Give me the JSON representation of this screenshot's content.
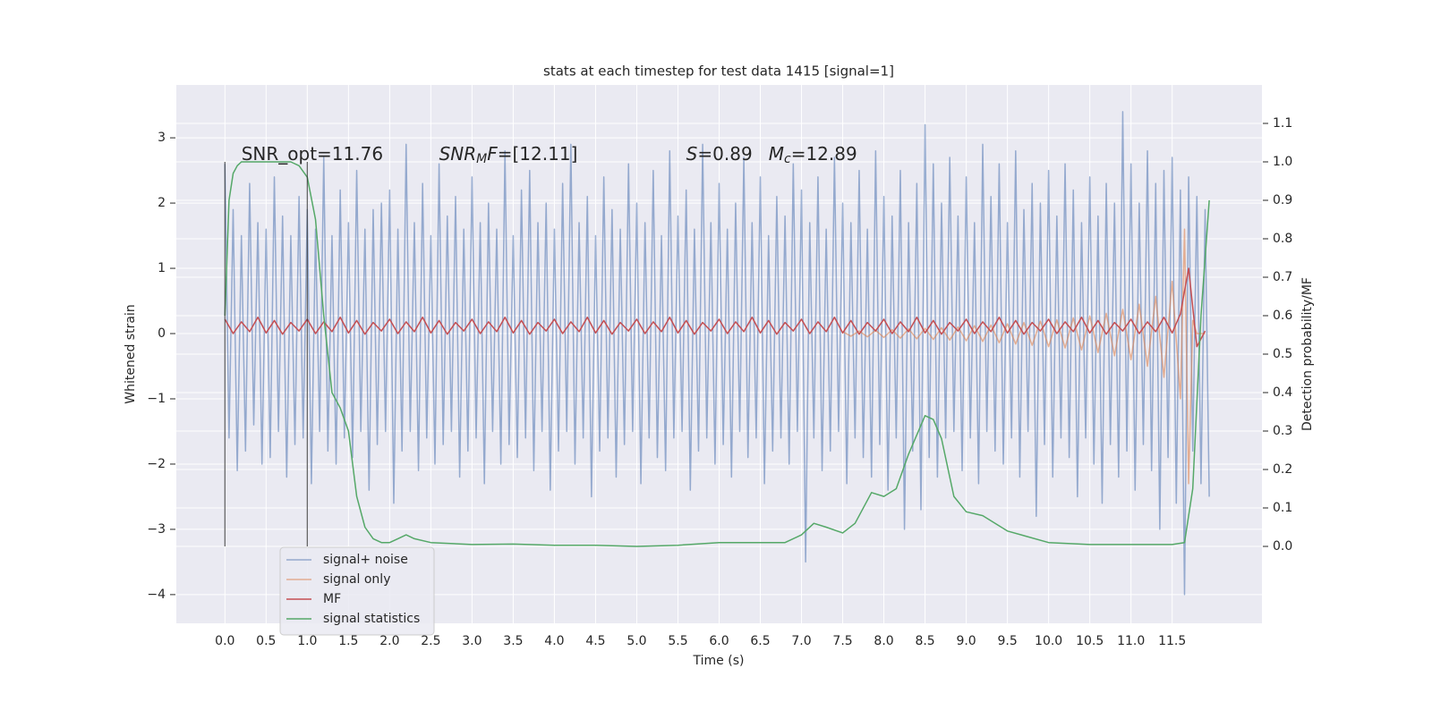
{
  "chart_data": {
    "type": "line",
    "title": "stats at each timestep for test data 1415 [signal=1]",
    "xlabel": "Time (s)",
    "ylabel": "Whitened strain",
    "y2label": "Detection probability/MF",
    "xlim": [
      -0.59,
      12.59
    ],
    "ylim": [
      -4.44,
      3.81
    ],
    "y2lim": [
      -0.2,
      1.2
    ],
    "xticks": [
      {
        "value": 0,
        "label": "0.0"
      },
      0.5,
      {
        "value": 1,
        "label": "1.0"
      },
      1.5,
      {
        "value": 2,
        "label": "2.0"
      },
      2.5,
      {
        "value": 3,
        "label": "3.0"
      },
      3.5,
      {
        "value": 4,
        "label": "4.0"
      },
      4.5,
      {
        "value": 5,
        "label": "5.0"
      },
      5.5,
      {
        "value": 6,
        "label": "6.0"
      },
      6.5,
      {
        "value": 7,
        "label": "7.0"
      },
      7.5,
      {
        "value": 8,
        "label": "8.0"
      },
      8.5,
      {
        "value": 9,
        "label": "9.0"
      },
      9.5,
      {
        "value": 10,
        "label": "10.0"
      },
      10.5,
      {
        "value": 11,
        "label": "11.0"
      },
      11.5
    ],
    "yticks": [
      {
        "value": -4,
        "label": "−4"
      },
      {
        "value": -3,
        "label": "−3"
      },
      {
        "value": -2,
        "label": "−2"
      },
      {
        "value": -1,
        "label": "−1"
      },
      0,
      1,
      2,
      3
    ],
    "y2ticks": [
      {
        "value": 0,
        "label": "0.0"
      },
      0.1,
      0.2,
      0.3,
      0.4,
      0.5,
      0.6,
      0.7,
      0.8,
      0.9,
      {
        "value": 1,
        "label": "1.0"
      },
      1.1
    ],
    "grid": true,
    "legend": "lower left",
    "annotations": [
      {
        "parts": [
          {
            "text": "SNR_opt=11.76"
          }
        ]
      },
      {
        "parts": [
          {
            "text": "SNR",
            "italic": true
          },
          {
            "text": "M",
            "italic": true,
            "sub": true
          },
          {
            "text": "F",
            "italic": true
          },
          {
            "text": "=[12.11]"
          }
        ]
      },
      {
        "parts": [
          {
            "text": "S",
            "italic": true
          },
          {
            "text": "=0.89"
          }
        ]
      },
      {
        "parts": [
          {
            "text": "M",
            "italic": true
          },
          {
            "text": "c",
            "italic": true,
            "sub": true
          },
          {
            "text": "=12.89"
          }
        ]
      }
    ],
    "vlines": [
      {
        "x": 0,
        "y2min": 0,
        "y2max": 1
      },
      {
        "x": 1,
        "y2min": 0,
        "y2max": 1
      }
    ],
    "vline_color": "#333333",
    "series": [
      {
        "name": "signal+ noise",
        "color": "#4c72b0",
        "axis": "y",
        "x": [
          0,
          0.05,
          0.1,
          0.15,
          0.2,
          0.25,
          0.3,
          0.35,
          0.4,
          0.45,
          0.5,
          0.55,
          0.6,
          0.65,
          0.7,
          0.75,
          0.8,
          0.85,
          0.9,
          0.95,
          1,
          1.05,
          1.1,
          1.15,
          1.2,
          1.25,
          1.3,
          1.35,
          1.4,
          1.45,
          1.5,
          1.55,
          1.6,
          1.65,
          1.7,
          1.75,
          1.8,
          1.85,
          1.9,
          1.95,
          2,
          2.05,
          2.1,
          2.15,
          2.2,
          2.25,
          2.3,
          2.35,
          2.4,
          2.45,
          2.5,
          2.55,
          2.6,
          2.65,
          2.7,
          2.75,
          2.8,
          2.85,
          2.9,
          2.95,
          3,
          3.05,
          3.1,
          3.15,
          3.2,
          3.25,
          3.3,
          3.35,
          3.4,
          3.45,
          3.5,
          3.55,
          3.6,
          3.65,
          3.7,
          3.75,
          3.8,
          3.85,
          3.9,
          3.95,
          4,
          4.05,
          4.1,
          4.15,
          4.2,
          4.25,
          4.3,
          4.35,
          4.4,
          4.45,
          4.5,
          4.55,
          4.6,
          4.65,
          4.7,
          4.75,
          4.8,
          4.85,
          4.9,
          4.95,
          5,
          5.05,
          5.1,
          5.15,
          5.2,
          5.25,
          5.3,
          5.35,
          5.4,
          5.45,
          5.5,
          5.55,
          5.6,
          5.65,
          5.7,
          5.75,
          5.8,
          5.85,
          5.9,
          5.95,
          6,
          6.05,
          6.1,
          6.15,
          6.2,
          6.25,
          6.3,
          6.35,
          6.4,
          6.45,
          6.5,
          6.55,
          6.6,
          6.65,
          6.7,
          6.75,
          6.8,
          6.85,
          6.9,
          6.95,
          7,
          7.05,
          7.1,
          7.15,
          7.2,
          7.25,
          7.3,
          7.35,
          7.4,
          7.45,
          7.5,
          7.55,
          7.6,
          7.65,
          7.7,
          7.75,
          7.8,
          7.85,
          7.9,
          7.95,
          8,
          8.05,
          8.1,
          8.15,
          8.2,
          8.25,
          8.3,
          8.35,
          8.4,
          8.45,
          8.5,
          8.55,
          8.6,
          8.65,
          8.7,
          8.75,
          8.8,
          8.85,
          8.9,
          8.95,
          9,
          9.05,
          9.1,
          9.15,
          9.2,
          9.25,
          9.3,
          9.35,
          9.4,
          9.45,
          9.5,
          9.55,
          9.6,
          9.65,
          9.7,
          9.75,
          9.8,
          9.85,
          9.9,
          9.95,
          10,
          10.05,
          10.1,
          10.15,
          10.2,
          10.25,
          10.3,
          10.35,
          10.4,
          10.45,
          10.5,
          10.55,
          10.6,
          10.65,
          10.7,
          10.75,
          10.8,
          10.85,
          10.9,
          10.95,
          11,
          11.05,
          11.1,
          11.15,
          11.2,
          11.25,
          11.3,
          11.35,
          11.4,
          11.45,
          11.5,
          11.55,
          11.6,
          11.65,
          11.7,
          11.75,
          11.8,
          11.85,
          11.9,
          11.95
        ],
        "values": [
          2.6,
          -1.6,
          1.9,
          -2.1,
          1.5,
          -1.8,
          2.3,
          -1.4,
          1.7,
          -2.0,
          1.6,
          -1.9,
          2.4,
          -1.5,
          1.8,
          -2.2,
          1.5,
          -1.7,
          2.1,
          -1.6,
          1.9,
          -2.3,
          1.6,
          -1.5,
          2.7,
          -1.8,
          1.5,
          -2.0,
          2.2,
          -1.6,
          1.7,
          -1.9,
          2.5,
          -1.5,
          1.6,
          -2.4,
          1.9,
          -1.7,
          2.0,
          -1.5,
          2.2,
          -2.6,
          1.6,
          -1.8,
          2.9,
          -1.5,
          1.7,
          -2.1,
          2.3,
          -1.6,
          1.5,
          -2.0,
          2.6,
          -1.7,
          1.8,
          -1.5,
          2.1,
          -2.2,
          1.6,
          -1.8,
          2.4,
          -1.6,
          1.7,
          -2.3,
          2.0,
          -1.5,
          1.6,
          -2.0,
          2.8,
          -1.7,
          1.5,
          -1.9,
          2.2,
          -1.6,
          2.5,
          -2.1,
          1.7,
          -1.5,
          2.0,
          -2.4,
          1.6,
          -1.8,
          2.3,
          -1.5,
          2.9,
          -2.0,
          1.7,
          -1.6,
          2.1,
          -2.5,
          1.5,
          -1.8,
          2.4,
          -1.6,
          1.9,
          -2.2,
          1.6,
          -1.7,
          2.6,
          -1.5,
          2.0,
          -2.3,
          1.7,
          -1.6,
          2.5,
          -1.9,
          1.5,
          -2.1,
          2.8,
          -1.6,
          1.8,
          -1.5,
          2.2,
          -2.4,
          1.6,
          -1.8,
          2.9,
          -1.6,
          1.7,
          -2.0,
          2.3,
          -1.7,
          1.6,
          -2.2,
          2.0,
          -1.5,
          2.7,
          -1.9,
          1.7,
          -1.6,
          2.4,
          -2.3,
          1.5,
          -1.8,
          2.1,
          -1.6,
          1.8,
          -2.0,
          2.6,
          -1.5,
          2.2,
          -3.5,
          1.7,
          -1.6,
          2.4,
          -2.1,
          1.6,
          -1.8,
          2.7,
          -1.5,
          2.0,
          -2.3,
          1.7,
          -1.6,
          2.5,
          -1.9,
          1.6,
          -2.2,
          2.8,
          -1.7,
          2.1,
          -2.4,
          1.8,
          -1.6,
          2.5,
          -3.0,
          1.7,
          -1.8,
          2.3,
          -2.7,
          3.2,
          -1.9,
          2.6,
          -2.2,
          2.0,
          -1.6,
          2.7,
          -1.5,
          1.8,
          -2.1,
          2.4,
          -1.6,
          1.7,
          -2.3,
          2.9,
          -1.5,
          2.1,
          -1.8,
          2.6,
          -2.0,
          1.7,
          -1.6,
          2.8,
          -2.2,
          1.9,
          -1.5,
          2.3,
          -2.8,
          2.0,
          -1.7,
          2.5,
          -2.2,
          1.8,
          -1.6,
          2.6,
          -1.9,
          2.2,
          -2.5,
          1.7,
          -1.6,
          2.4,
          -2.0,
          1.8,
          -2.6,
          2.3,
          -1.7,
          2.0,
          -2.2,
          3.4,
          -1.8,
          2.6,
          -2.4,
          2.0,
          -1.7,
          2.8,
          -2.1,
          2.3,
          -3.0,
          2.5,
          -1.9,
          2.7,
          -2.6,
          2.2,
          -4.0,
          2.4,
          -1.8,
          2.1,
          -2.3,
          1.9,
          -2.5
        ]
      },
      {
        "name": "signal only",
        "color": "#dd8452",
        "axis": "y",
        "x": [
          7.5,
          7.6,
          7.7,
          7.8,
          7.9,
          8.0,
          8.1,
          8.2,
          8.3,
          8.4,
          8.5,
          8.6,
          8.7,
          8.8,
          8.9,
          9.0,
          9.1,
          9.2,
          9.3,
          9.4,
          9.5,
          9.6,
          9.7,
          9.8,
          9.9,
          10.0,
          10.1,
          10.2,
          10.3,
          10.4,
          10.5,
          10.6,
          10.7,
          10.8,
          10.9,
          11.0,
          11.1,
          11.2,
          11.3,
          11.4,
          11.5,
          11.6,
          11.65,
          11.7,
          11.75,
          11.8,
          11.9
        ],
        "values": [
          0.03,
          -0.04,
          0.04,
          -0.05,
          0.05,
          -0.06,
          0.06,
          -0.07,
          0.07,
          -0.08,
          0.08,
          -0.09,
          0.09,
          -0.1,
          0.1,
          -0.11,
          0.12,
          -0.12,
          0.13,
          -0.14,
          0.15,
          -0.16,
          0.17,
          -0.18,
          0.19,
          -0.2,
          0.21,
          -0.22,
          0.24,
          -0.25,
          0.27,
          -0.29,
          0.31,
          -0.34,
          0.37,
          -0.4,
          0.45,
          -0.5,
          0.57,
          -0.67,
          0.8,
          -1.0,
          1.6,
          -2.3,
          0.2,
          0,
          0
        ]
      },
      {
        "name": "MF",
        "color": "#c44e52",
        "axis": "y",
        "x": [
          0,
          0.1,
          0.2,
          0.3,
          0.4,
          0.5,
          0.6,
          0.7,
          0.8,
          0.9,
          1,
          1.1,
          1.2,
          1.3,
          1.4,
          1.5,
          1.6,
          1.7,
          1.8,
          1.9,
          2,
          2.1,
          2.2,
          2.3,
          2.4,
          2.5,
          2.6,
          2.7,
          2.8,
          2.9,
          3,
          3.1,
          3.2,
          3.3,
          3.4,
          3.5,
          3.6,
          3.7,
          3.8,
          3.9,
          4,
          4.1,
          4.2,
          4.3,
          4.4,
          4.5,
          4.6,
          4.7,
          4.8,
          4.9,
          5,
          5.1,
          5.2,
          5.3,
          5.4,
          5.5,
          5.6,
          5.7,
          5.8,
          5.9,
          6,
          6.1,
          6.2,
          6.3,
          6.4,
          6.5,
          6.6,
          6.7,
          6.8,
          6.9,
          7,
          7.1,
          7.2,
          7.3,
          7.4,
          7.5,
          7.6,
          7.7,
          7.8,
          7.9,
          8,
          8.1,
          8.2,
          8.3,
          8.4,
          8.5,
          8.6,
          8.7,
          8.8,
          8.9,
          9,
          9.1,
          9.2,
          9.3,
          9.4,
          9.5,
          9.6,
          9.7,
          9.8,
          9.9,
          10,
          10.1,
          10.2,
          10.3,
          10.4,
          10.5,
          10.6,
          10.7,
          10.8,
          10.9,
          11,
          11.1,
          11.2,
          11.3,
          11.4,
          11.5,
          11.6,
          11.7,
          11.8,
          11.9
        ],
        "values": [
          0.22,
          0.0,
          0.18,
          0.03,
          0.25,
          0.01,
          0.2,
          -0.01,
          0.17,
          0.04,
          0.22,
          0.0,
          0.18,
          0.03,
          0.25,
          0.01,
          0.2,
          -0.01,
          0.17,
          0.04,
          0.22,
          0.0,
          0.18,
          0.03,
          0.25,
          0.01,
          0.2,
          -0.01,
          0.17,
          0.04,
          0.22,
          0.0,
          0.18,
          0.03,
          0.25,
          0.01,
          0.2,
          -0.01,
          0.17,
          0.04,
          0.22,
          0.0,
          0.18,
          0.03,
          0.25,
          0.01,
          0.2,
          -0.01,
          0.17,
          0.04,
          0.22,
          0.0,
          0.18,
          0.03,
          0.25,
          0.01,
          0.2,
          -0.01,
          0.17,
          0.04,
          0.22,
          0.0,
          0.18,
          0.03,
          0.25,
          0.01,
          0.2,
          -0.01,
          0.17,
          0.04,
          0.22,
          0.0,
          0.18,
          0.03,
          0.25,
          0.01,
          0.2,
          -0.01,
          0.17,
          0.04,
          0.22,
          0.0,
          0.18,
          0.03,
          0.25,
          0.01,
          0.2,
          -0.01,
          0.17,
          0.04,
          0.22,
          0.0,
          0.18,
          0.03,
          0.25,
          0.01,
          0.2,
          -0.01,
          0.17,
          0.04,
          0.22,
          0.0,
          0.18,
          0.03,
          0.25,
          0.01,
          0.2,
          -0.01,
          0.17,
          0.04,
          0.22,
          0.0,
          0.18,
          0.03,
          0.25,
          0.01,
          0.3,
          1.0,
          -0.2,
          0.04
        ]
      },
      {
        "name": "signal statistics",
        "color": "#55a868",
        "axis": "y2",
        "x": [
          0,
          0.05,
          0.1,
          0.15,
          0.2,
          0.5,
          0.8,
          0.9,
          1.0,
          1.1,
          1.2,
          1.3,
          1.4,
          1.5,
          1.6,
          1.7,
          1.8,
          1.9,
          2.0,
          2.1,
          2.2,
          2.3,
          2.5,
          3.0,
          3.5,
          4.0,
          4.5,
          5.0,
          5.5,
          6.0,
          6.5,
          6.8,
          7.0,
          7.15,
          7.3,
          7.5,
          7.65,
          7.85,
          8.0,
          8.15,
          8.3,
          8.5,
          8.6,
          8.7,
          8.85,
          9.0,
          9.2,
          9.5,
          10.0,
          10.5,
          11.0,
          11.5,
          11.65,
          11.75,
          11.85,
          11.95
        ],
        "values": [
          0.6,
          0.9,
          0.97,
          0.99,
          1.0,
          1.0,
          1.0,
          0.99,
          0.96,
          0.85,
          0.6,
          0.4,
          0.36,
          0.3,
          0.13,
          0.05,
          0.02,
          0.01,
          0.01,
          0.02,
          0.03,
          0.02,
          0.01,
          0.005,
          0.006,
          0.003,
          0.003,
          0.0,
          0.003,
          0.01,
          0.01,
          0.01,
          0.03,
          0.06,
          0.05,
          0.035,
          0.06,
          0.14,
          0.13,
          0.15,
          0.24,
          0.34,
          0.33,
          0.28,
          0.13,
          0.09,
          0.08,
          0.04,
          0.01,
          0.005,
          0.005,
          0.005,
          0.01,
          0.15,
          0.6,
          0.9
        ]
      }
    ]
  }
}
